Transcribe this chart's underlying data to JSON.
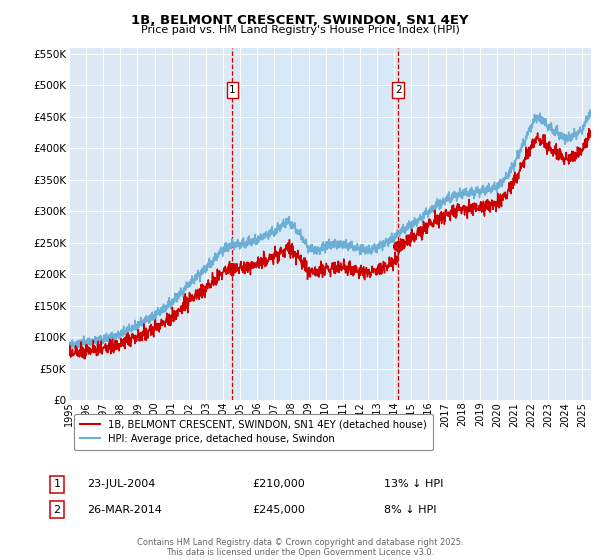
{
  "title": "1B, BELMONT CRESCENT, SWINDON, SN1 4EY",
  "subtitle": "Price paid vs. HM Land Registry's House Price Index (HPI)",
  "legend_line1": "1B, BELMONT CRESCENT, SWINDON, SN1 4EY (detached house)",
  "legend_line2": "HPI: Average price, detached house, Swindon",
  "annotation1_label": "1",
  "annotation1_date": "23-JUL-2004",
  "annotation1_price": "£210,000",
  "annotation1_hpi": "13% ↓ HPI",
  "annotation2_label": "2",
  "annotation2_date": "26-MAR-2014",
  "annotation2_price": "£245,000",
  "annotation2_hpi": "8% ↓ HPI",
  "footer": "Contains HM Land Registry data © Crown copyright and database right 2025.\nThis data is licensed under the Open Government Licence v3.0.",
  "hpi_color": "#6baed6",
  "price_color": "#cc0000",
  "vline_color": "#cc0000",
  "shade_color": "#d6e8f5",
  "background_color": "#dce9f5",
  "ylim": [
    0,
    560000
  ],
  "yticks": [
    0,
    50000,
    100000,
    150000,
    200000,
    250000,
    300000,
    350000,
    400000,
    450000,
    500000,
    550000
  ],
  "vline1_x": 2004.55,
  "vline2_x": 2014.23,
  "sale1_x": 2004.55,
  "sale1_y": 210000,
  "sale2_x": 2014.23,
  "sale2_y": 245000,
  "xlim_start": 1995.0,
  "xlim_end": 2025.5
}
